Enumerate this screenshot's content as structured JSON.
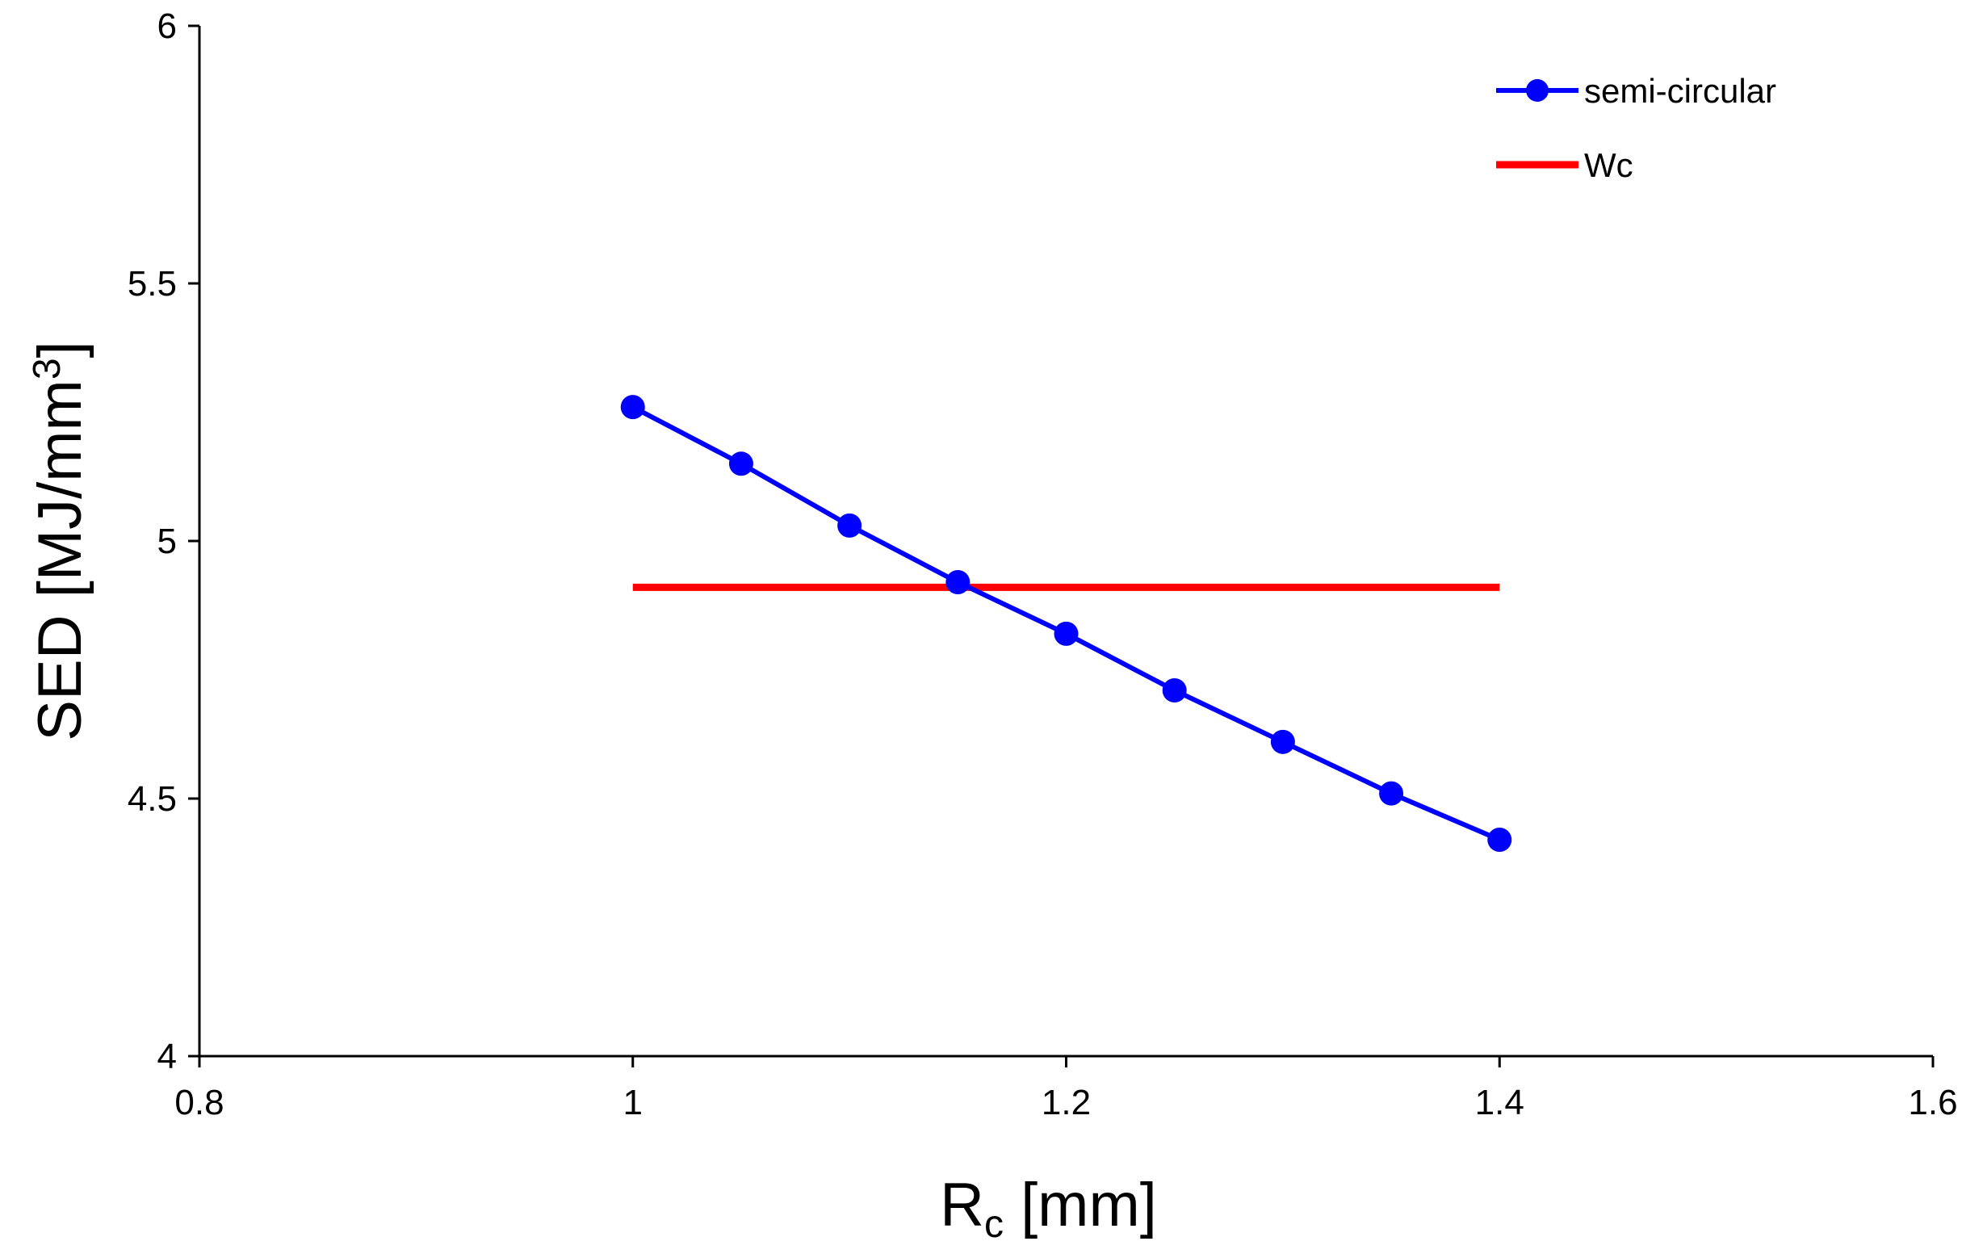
{
  "chart_data": {
    "type": "line",
    "xlabel": {
      "main": "R",
      "sub": "c",
      "rest": " [mm]"
    },
    "ylabel": {
      "main": "SED [MJ/mm",
      "sup": "3",
      "rest": "]"
    },
    "xlim": [
      0.8,
      1.6
    ],
    "ylim": [
      4,
      6
    ],
    "xticks": [
      "0.8",
      "1",
      "1.2",
      "1.4",
      "1.6"
    ],
    "yticks": [
      "4",
      "4.5",
      "5",
      "5.5",
      "6"
    ],
    "grid": false,
    "legend_position": "top-right",
    "series": [
      {
        "name": "semi-circular",
        "color": "#0000ff",
        "marker": "circle",
        "x": [
          1.0,
          1.05,
          1.1,
          1.15,
          1.2,
          1.25,
          1.3,
          1.35,
          1.4
        ],
        "y": [
          5.26,
          5.15,
          5.03,
          4.92,
          4.82,
          4.71,
          4.61,
          4.51,
          4.42
        ]
      },
      {
        "name": "Wc",
        "color": "#ff0000",
        "marker": "none",
        "x": [
          1.0,
          1.4
        ],
        "y": [
          4.91,
          4.91
        ]
      }
    ]
  }
}
